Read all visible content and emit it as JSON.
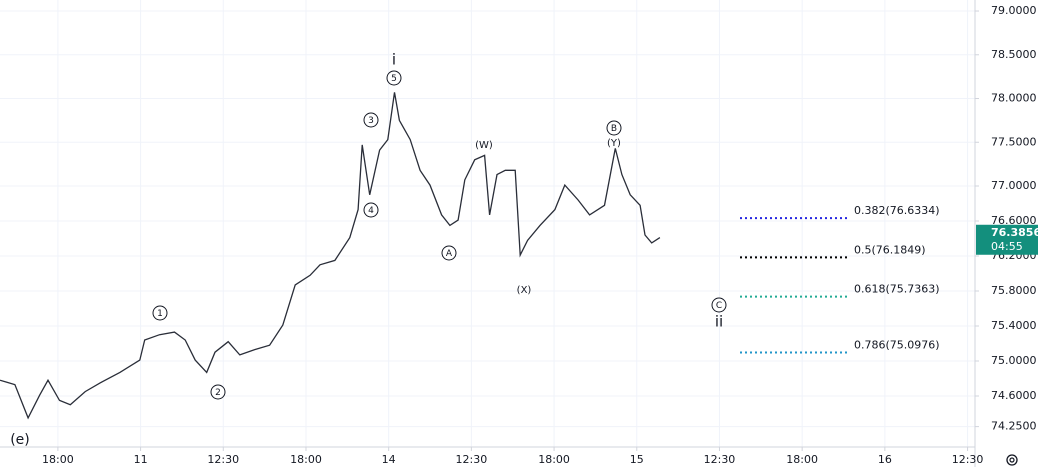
{
  "chart_data": {
    "type": "line",
    "color": "#2a2e39",
    "grid": true,
    "x": [
      -0.7,
      -0.52,
      -0.36,
      -0.22,
      -0.12,
      0.02,
      0.15,
      0.33,
      0.51,
      0.75,
      0.99,
      1.05,
      1.23,
      1.41,
      1.54,
      1.66,
      1.8,
      1.9,
      2.06,
      2.2,
      2.38,
      2.56,
      2.72,
      2.87,
      3.05,
      3.17,
      3.35,
      3.53,
      3.63,
      3.68,
      3.77,
      3.89,
      3.99,
      4.07,
      4.13,
      4.26,
      4.38,
      4.5,
      4.64,
      4.74,
      4.84,
      4.92,
      5.04,
      5.16,
      5.22,
      5.31,
      5.41,
      5.53,
      5.59,
      5.68,
      5.83,
      6.01,
      6.13,
      6.29,
      6.43,
      6.61,
      6.74,
      6.82,
      6.92,
      7.04,
      7.1,
      7.18,
      7.28
    ],
    "values": [
      74.78,
      74.73,
      74.35,
      74.61,
      74.78,
      74.55,
      74.5,
      74.65,
      74.75,
      74.87,
      75.01,
      75.24,
      75.3,
      75.33,
      75.24,
      75.01,
      74.87,
      75.1,
      75.22,
      75.07,
      75.13,
      75.18,
      75.41,
      75.87,
      75.98,
      76.1,
      76.15,
      76.41,
      76.73,
      77.47,
      76.9,
      77.41,
      77.53,
      78.07,
      77.75,
      77.53,
      77.18,
      77.01,
      76.67,
      76.55,
      76.61,
      77.07,
      77.3,
      77.35,
      76.67,
      77.13,
      77.18,
      77.18,
      76.21,
      76.38,
      76.55,
      76.73,
      77.01,
      76.84,
      76.67,
      76.78,
      77.43,
      77.13,
      76.9,
      76.78,
      76.44,
      76.35,
      76.41
    ],
    "xlim": [
      -0.7,
      11.09
    ],
    "ylim": [
      74.017,
      79.126
    ],
    "xticks": [
      {
        "value": 0,
        "label": "18:00"
      },
      {
        "value": 1,
        "label": "11"
      },
      {
        "value": 2,
        "label": "12:30"
      },
      {
        "value": 3,
        "label": "18:00"
      },
      {
        "value": 4,
        "label": "14"
      },
      {
        "value": 5,
        "label": "12:30"
      },
      {
        "value": 6,
        "label": "18:00"
      },
      {
        "value": 7,
        "label": "15"
      },
      {
        "value": 8,
        "label": "12:30"
      },
      {
        "value": 9,
        "label": "18:00"
      },
      {
        "value": 10,
        "label": "16"
      },
      {
        "value": 11,
        "label": "12:30"
      }
    ],
    "yticks": [
      {
        "value": 79,
        "label": "79.0000"
      },
      {
        "value": 78.5,
        "label": "78.5000"
      },
      {
        "value": 78,
        "label": "78.0000"
      },
      {
        "value": 77.5,
        "label": "77.5000"
      },
      {
        "value": 77,
        "label": "77.0000"
      },
      {
        "value": 76.6,
        "label": "76.6000"
      },
      {
        "value": 76.2,
        "label": "76.2000"
      },
      {
        "value": 75.8,
        "label": "75.8000"
      },
      {
        "value": 75.4,
        "label": "75.4000"
      },
      {
        "value": 75,
        "label": "75.0000"
      },
      {
        "value": 74.6,
        "label": "74.6000"
      },
      {
        "value": 74.25,
        "label": "74.2500"
      }
    ],
    "fib_levels": [
      {
        "value": 76.6334,
        "label": "0.382(76.6334)",
        "color": "#2424e0"
      },
      {
        "value": 76.1849,
        "label": "0.5(76.1849)",
        "color": "#000000"
      },
      {
        "value": 75.7363,
        "label": "0.618(75.7363)",
        "color": "#22ab94"
      },
      {
        "value": 75.0976,
        "label": "0.786(75.0976)",
        "color": "#2196c8"
      }
    ],
    "last_price": 76.3856,
    "countdown": "04:55",
    "annotations": [
      "i",
      "5",
      "3",
      "4",
      "1",
      "2",
      "A",
      "(W)",
      "(X)",
      "B",
      "(Y)",
      "C",
      "ii",
      "(e)"
    ]
  }
}
